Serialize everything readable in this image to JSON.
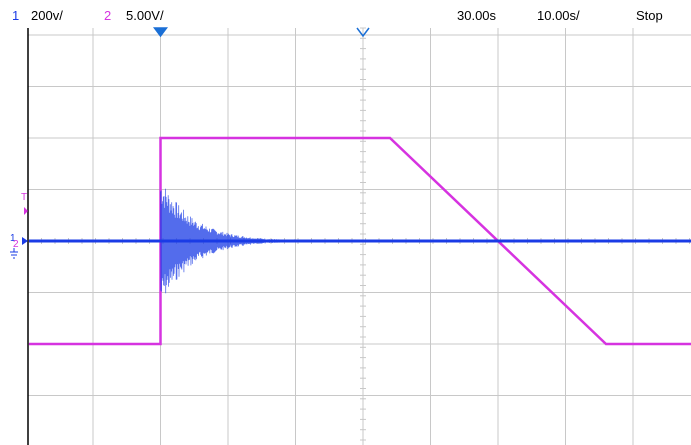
{
  "status_bar": {
    "ch1_number": "1",
    "ch1_scale": "200v/",
    "ch2_number": "2",
    "ch2_scale": "5.00V/",
    "trigger_delay": "30.00s",
    "timebase": "10.00s/",
    "run_state": "Stop"
  },
  "markers": {
    "trigger_level_label": "T",
    "ch1_ground_label": "1",
    "ch2_ground_label": "2"
  },
  "colors": {
    "ch1": "#1a3be6",
    "ch2": "#d633e0",
    "grid": "#c8c8c8",
    "marker": "#1a6fd6",
    "background": "#ffffff"
  },
  "trace_ch1": {
    "baseline_div": 0.0,
    "burst_start_time_div": -3.0,
    "burst_peak_div": 1.25,
    "decay_end_time_div": -1.0
  },
  "trace_ch2": {
    "low_div": -2.0,
    "high_div": 2.0,
    "rise_time_div": -3.0,
    "fall_start_time_div": 0.4,
    "fall_end_time_div": 3.6
  }
}
